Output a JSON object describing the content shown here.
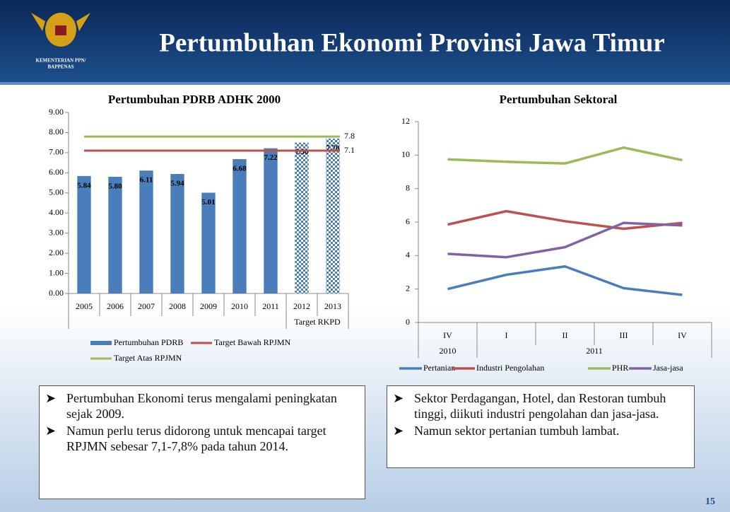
{
  "header": {
    "org": [
      "KEMENTERIAN PPN/",
      "BAPPENAS"
    ],
    "title": "Pertumbuhan Ekonomi Provinsi Jawa Timur"
  },
  "chart_data": [
    {
      "type": "bar",
      "title": "Pertumbuhan PDRB ADHK 2000",
      "categories": [
        "2005",
        "2006",
        "2007",
        "2008",
        "2009",
        "2010",
        "2011",
        "2012",
        "2013"
      ],
      "category_groups": [
        null,
        null,
        null,
        null,
        null,
        null,
        null,
        "Target RKPD",
        "Target RKPD"
      ],
      "series": [
        {
          "name": "Pertumbuhan PDRB",
          "type": "bar",
          "color": "#4a7ebb",
          "values": [
            5.84,
            5.8,
            6.11,
            5.94,
            5.01,
            6.68,
            7.22,
            7.5,
            7.7
          ],
          "value_labels": [
            "5.84",
            "5.80",
            "6.11",
            "5.94",
            "5.01",
            "6.68",
            "7.22",
            "7.50",
            "7.70"
          ],
          "patterned": [
            false,
            false,
            false,
            false,
            false,
            false,
            false,
            true,
            true
          ]
        },
        {
          "name": "Target Bawah RPJMN",
          "type": "hline",
          "color": "#c0504d",
          "value": 7.1
        },
        {
          "name": "Target Atas RPJMN",
          "type": "hline",
          "color": "#9bbb59",
          "value": 7.8
        }
      ],
      "ylim": [
        0,
        9
      ],
      "yticks": [
        {
          "value": 0,
          "label": "0.00"
        },
        {
          "value": 1,
          "label": "1.00"
        },
        {
          "value": 2,
          "label": "2.00"
        },
        {
          "value": 3,
          "label": "3.00"
        },
        {
          "value": 4,
          "label": "4.00"
        },
        {
          "value": 5,
          "label": "5.00"
        },
        {
          "value": 6,
          "label": "6.00"
        },
        {
          "value": 7,
          "label": "7.00"
        },
        {
          "value": 8,
          "label": "8.00"
        },
        {
          "value": 9,
          "label": "9.00"
        }
      ]
    },
    {
      "type": "line",
      "title": "Pertumbuhan Sektoral",
      "categories": [
        "IV",
        "I",
        "II",
        "III",
        "IV"
      ],
      "category_groups": [
        "2010",
        "2011",
        "2011",
        "2011",
        "2011"
      ],
      "series": [
        {
          "name": "Pertanian",
          "color": "#4a7ebb",
          "values": [
            2.0,
            2.85,
            3.35,
            2.05,
            1.65
          ]
        },
        {
          "name": "Industri Pengolahan",
          "color": "#c0504d",
          "values": [
            5.85,
            6.65,
            6.05,
            5.6,
            5.95
          ]
        },
        {
          "name": "PHR",
          "color": "#9bbb59",
          "values": [
            9.75,
            9.6,
            9.5,
            10.45,
            9.7
          ]
        },
        {
          "name": "Jasa-jasa",
          "color": "#8064a2",
          "values": [
            4.1,
            3.9,
            4.5,
            5.95,
            5.8
          ]
        }
      ],
      "ylim": [
        0,
        12
      ],
      "yticks": [
        0,
        2,
        4,
        6,
        8,
        10,
        12
      ]
    }
  ],
  "notes_left": [
    "Pertumbuhan Ekonomi terus mengalami peningkatan sejak 2009.",
    "Namun perlu terus didorong untuk mencapai target RPJMN sebesar 7,1-7,8% pada tahun 2014."
  ],
  "notes_right": [
    "Sektor Perdagangan, Hotel, dan Restoran tumbuh tinggi, diikuti industri pengolahan dan jasa-jasa.",
    "Namun sektor pertanian tumbuh lambat."
  ],
  "page_number": "15"
}
